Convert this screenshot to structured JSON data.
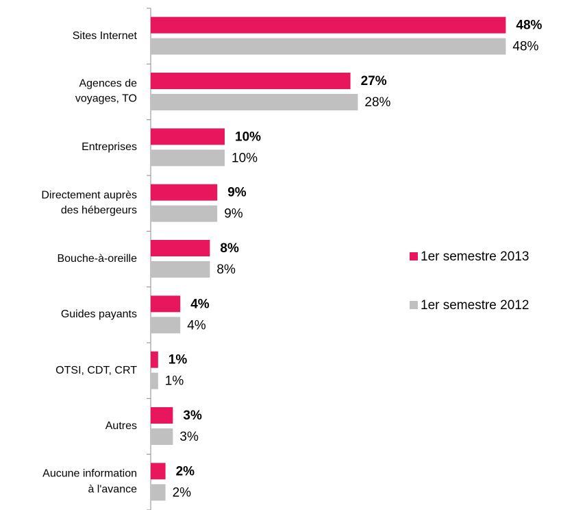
{
  "chart_data": {
    "type": "hbar",
    "categories": [
      "Sites Internet",
      "Agences de\nvoyages, TO",
      "Entreprises",
      "Directement auprès\ndes hébergeurs",
      "Bouche-à-oreille",
      "Guides payants",
      "OTSI, CDT, CRT",
      "Autres",
      "Aucune information\nà l'avance"
    ],
    "series": [
      {
        "name": "1er semestre 2013",
        "color": "#e8175d",
        "values": [
          48,
          27,
          10,
          9,
          8,
          4,
          1,
          3,
          2
        ],
        "value_labels": [
          "48%",
          "27%",
          "10%",
          "9%",
          "8%",
          "4%",
          "1%",
          "3%",
          "2%"
        ]
      },
      {
        "name": "1er semestre 2012",
        "color": "#c0c0c0",
        "values": [
          48,
          28,
          10,
          9,
          8,
          4,
          1,
          3,
          2
        ],
        "value_labels": [
          "48%",
          "28%",
          "10%",
          "9%",
          "8%",
          "4%",
          "1%",
          "3%",
          "2%"
        ]
      }
    ],
    "xlim": [
      0,
      50
    ]
  }
}
